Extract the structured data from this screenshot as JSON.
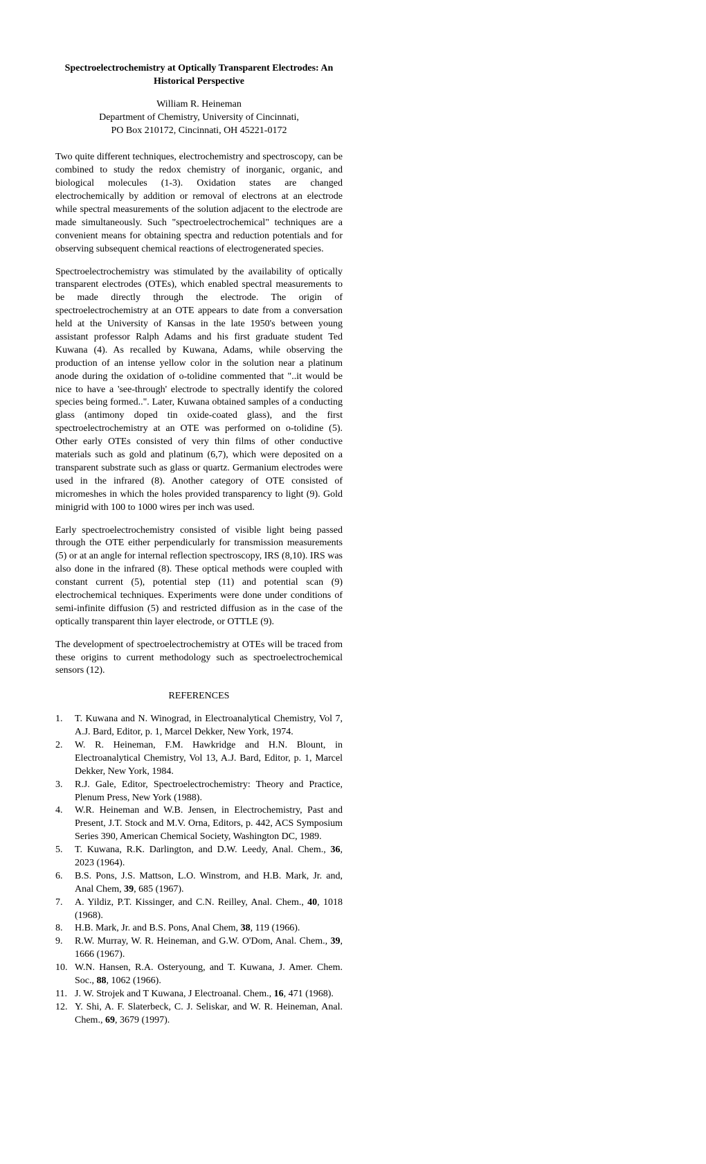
{
  "title": "Spectroelectrochemistry at Optically Transparent Electrodes: An Historical Perspective",
  "author": "William R. Heineman",
  "affiliation_line1": "Department of Chemistry, University of Cincinnati,",
  "affiliation_line2": "PO Box 210172, Cincinnati, OH 45221-0172",
  "para1": "Two quite different techniques, electrochemistry and spectroscopy, can be combined to study the redox chemistry of inorganic, organic, and biological molecules (1-3). Oxidation states are changed electrochemically by addition or removal of electrons at an electrode while spectral measurements of the solution adjacent to the electrode are made simultaneously. Such \"spectroelectrochemical\" techniques are a convenient means for obtaining spectra and reduction potentials and for observing subsequent chemical reactions of electrogenerated species.",
  "para2": "Spectroelectrochemistry was stimulated by the availability of optically transparent electrodes (OTEs), which enabled spectral measurements to be made directly through the electrode. The origin of spectroelectrochemistry at an OTE appears to date from a conversation held at the University of Kansas in the late 1950's between young assistant professor Ralph Adams and his first graduate student Ted Kuwana (4). As recalled by Kuwana, Adams, while observing the production of an intense yellow color in the solution near a platinum anode during the oxidation of o-tolidine commented that \"..it would be nice to have a 'see-through' electrode to spectrally identify the colored species being formed..\". Later, Kuwana obtained samples of a conducting glass (antimony doped tin oxide-coated glass), and the first spectroelectrochemistry at an OTE was performed on o-tolidine (5). Other early OTEs consisted of very thin films of other conductive materials such as gold and platinum (6,7), which were deposited on a transparent substrate such as glass or quartz. Germanium electrodes were used in the infrared (8). Another category of OTE consisted of micromeshes in which the holes provided transparency to light (9). Gold minigrid with 100 to 1000 wires per inch was used.",
  "para3": "Early spectroelectrochemistry consisted of visible light being passed through the OTE either perpendicularly for transmission measurements (5) or at an angle for internal reflection spectroscopy, IRS (8,10). IRS was also done in the infrared (8). These optical methods were coupled with constant current (5), potential step (11) and potential scan (9) electrochemical techniques. Experiments were done under conditions of semi-infinite diffusion (5) and restricted diffusion as in the case of the optically transparent thin layer electrode, or OTTLE (9).",
  "para4": "The development of spectroelectrochemistry at OTEs will be traced from these origins to current methodology such as spectroelectrochemical sensors (12).",
  "references_heading": "REFERENCES",
  "references": [
    {
      "num": "1.",
      "pre": "T. Kuwana and N. Winograd, in Electroanalytical Chemistry, Vol 7, A.J. Bard, Editor, p. 1, Marcel Dekker, New York, 1974.",
      "vol": "",
      "post": ""
    },
    {
      "num": "2.",
      "pre": "W. R. Heineman, F.M. Hawkridge and H.N. Blount, in Electroanalytical Chemistry, Vol 13, A.J. Bard, Editor, p. 1, Marcel Dekker, New York, 1984.",
      "vol": "",
      "post": ""
    },
    {
      "num": "3.",
      "pre": "R.J. Gale, Editor, Spectroelectrochemistry: Theory and Practice, Plenum Press, New York (1988).",
      "vol": "",
      "post": ""
    },
    {
      "num": "4.",
      "pre": "W.R. Heineman and W.B. Jensen, in Electrochemistry, Past and Present, J.T. Stock and M.V. Orna, Editors, p. 442, ACS Symposium Series 390, American Chemical Society, Washington DC, 1989.",
      "vol": "",
      "post": ""
    },
    {
      "num": "5.",
      "pre": "T. Kuwana, R.K. Darlington, and D.W. Leedy, Anal. Chem., ",
      "vol": "36",
      "post": ", 2023 (1964)."
    },
    {
      "num": "6.",
      "pre": "B.S. Pons, J.S. Mattson, L.O. Winstrom, and H.B. Mark, Jr. and, Anal Chem, ",
      "vol": "39",
      "post": ", 685 (1967)."
    },
    {
      "num": "7.",
      "pre": "A. Yildiz, P.T. Kissinger, and C.N. Reilley, Anal. Chem., ",
      "vol": "40",
      "post": ", 1018 (1968)."
    },
    {
      "num": "8.",
      "pre": "H.B. Mark, Jr. and B.S. Pons, Anal Chem, ",
      "vol": "38",
      "post": ", 119 (1966)."
    },
    {
      "num": "9.",
      "pre": "R.W. Murray, W. R. Heineman, and G.W. O'Dom, Anal. Chem., ",
      "vol": "39",
      "post": ", 1666 (1967)."
    },
    {
      "num": "10.",
      "pre": "W.N. Hansen, R.A. Osteryoung, and T. Kuwana, J. Amer. Chem. Soc., ",
      "vol": "88",
      "post": ", 1062 (1966)."
    },
    {
      "num": "11.",
      "pre": "J. W. Strojek and T Kuwana, J Electroanal. Chem., ",
      "vol": "16",
      "post": ", 471 (1968)."
    },
    {
      "num": "12.",
      "pre": "Y. Shi, A. F. Slaterbeck, C. J. Seliskar, and W. R. Heineman, Anal. Chem., ",
      "vol": "69",
      "post": ", 3679 (1997)."
    }
  ]
}
